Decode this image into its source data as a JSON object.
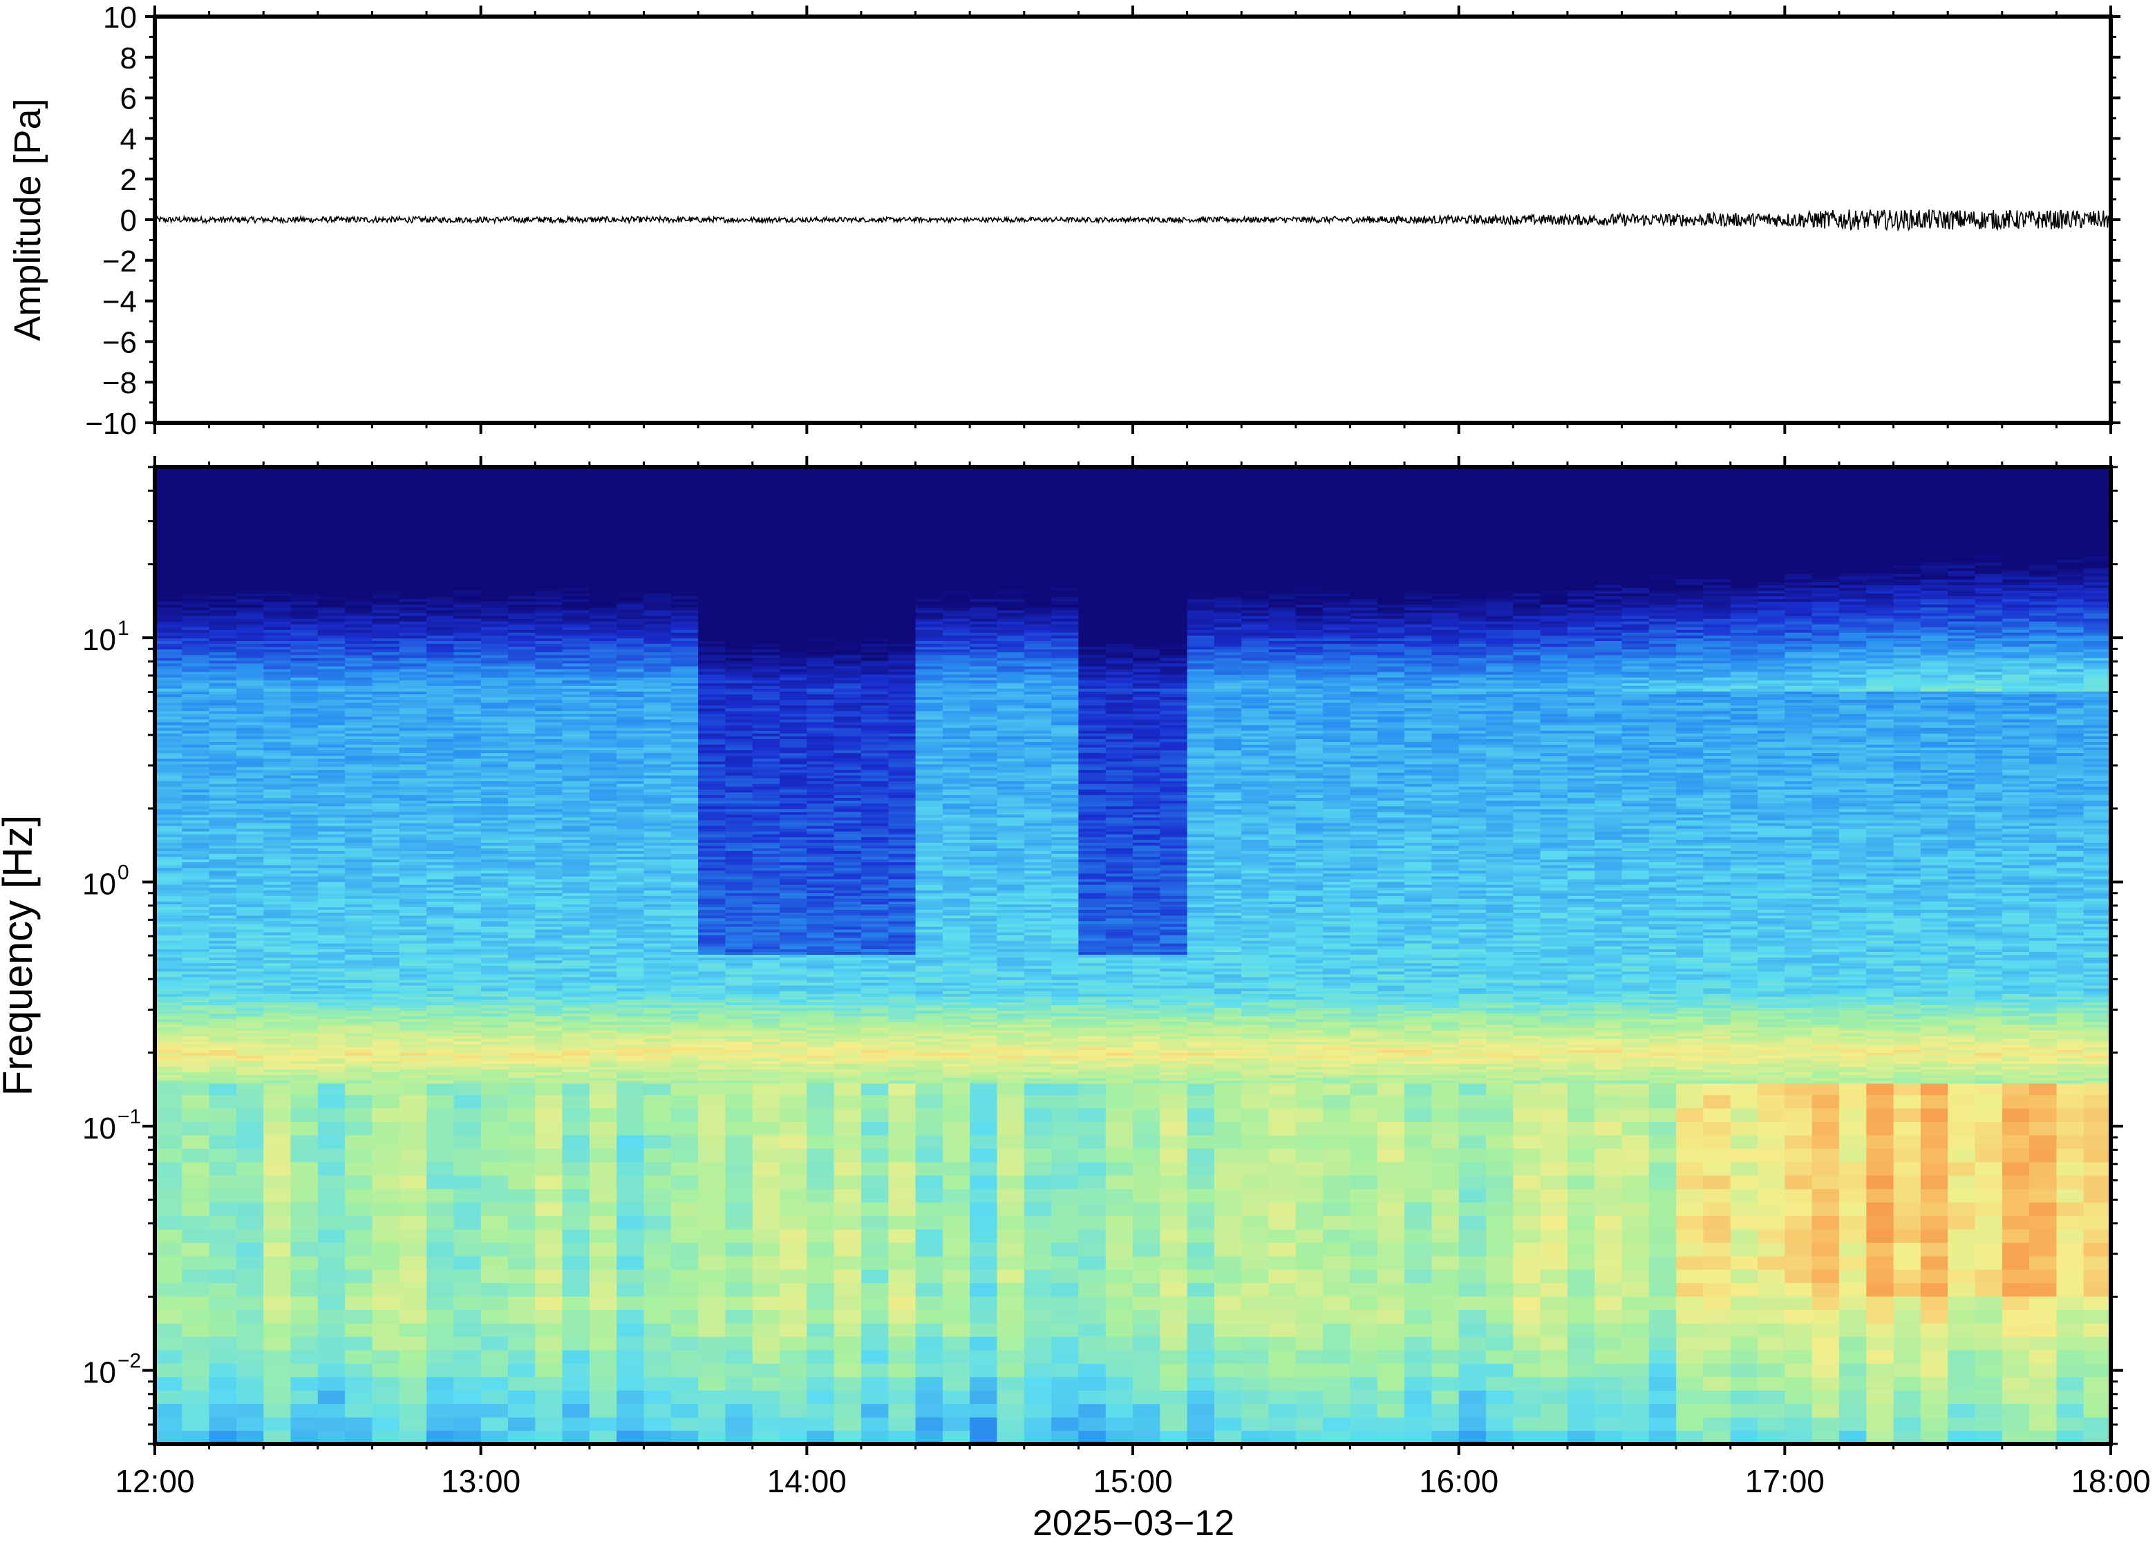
{
  "chart_data": [
    {
      "type": "line",
      "panel": "waveform",
      "ylabel": "Amplitude [Pa]",
      "ylim": [
        -10,
        10
      ],
      "yticks": [
        -10,
        -8,
        -6,
        -4,
        -2,
        0,
        2,
        4,
        6,
        8,
        10
      ],
      "yticklabels": [
        "−10",
        "−8",
        "−6",
        "−4",
        "−2",
        "0",
        "2",
        "4",
        "6",
        "8",
        "10"
      ],
      "xlim": [
        "12:00",
        "18:00"
      ],
      "series": [
        {
          "x": [
            "12:00",
            "12:30",
            "13:00",
            "13:30",
            "14:00",
            "14:30",
            "15:00",
            "15:30",
            "16:00",
            "16:30",
            "17:00",
            "17:10",
            "17:30",
            "18:00"
          ],
          "envelope": [
            0.15,
            0.15,
            0.15,
            0.15,
            0.12,
            0.12,
            0.12,
            0.15,
            0.2,
            0.3,
            0.35,
            0.5,
            0.5,
            0.45
          ]
        }
      ],
      "line_color": "#000000",
      "grid": false
    },
    {
      "type": "heatmap",
      "panel": "spectrogram",
      "xlabel": "2025−03−12",
      "ylabel": "Frequency [Hz]",
      "yscale": "log",
      "ylim": [
        0.005,
        50
      ],
      "yticks": [
        0.01,
        0.1,
        1,
        10
      ],
      "yticklabels": [
        {
          "base": "10",
          "exp": "−2"
        },
        {
          "base": "10",
          "exp": "−1"
        },
        {
          "base": "10",
          "exp": "0"
        },
        {
          "base": "10",
          "exp": "1"
        }
      ],
      "x": [
        "12:00",
        "13:00",
        "14:00",
        "15:00",
        "16:00",
        "17:00",
        "18:00"
      ],
      "xlim": [
        "12:00",
        "18:00"
      ],
      "colormap": [
        "#0e0a7a",
        "#1a2fd0",
        "#2a8ff0",
        "#5cdcf0",
        "#a8f0a0",
        "#f4ee8a",
        "#f8b05a",
        "#f07030"
      ],
      "description_of_features": {
        "microseism_band_hz": [
          0.15,
          0.25
        ],
        "dark_intervals": [
          [
            "13:45",
            "14:15"
          ],
          [
            "14:55",
            "15:05"
          ]
        ],
        "elevated_low_freq_after": "16:00"
      },
      "grid": false
    }
  ]
}
